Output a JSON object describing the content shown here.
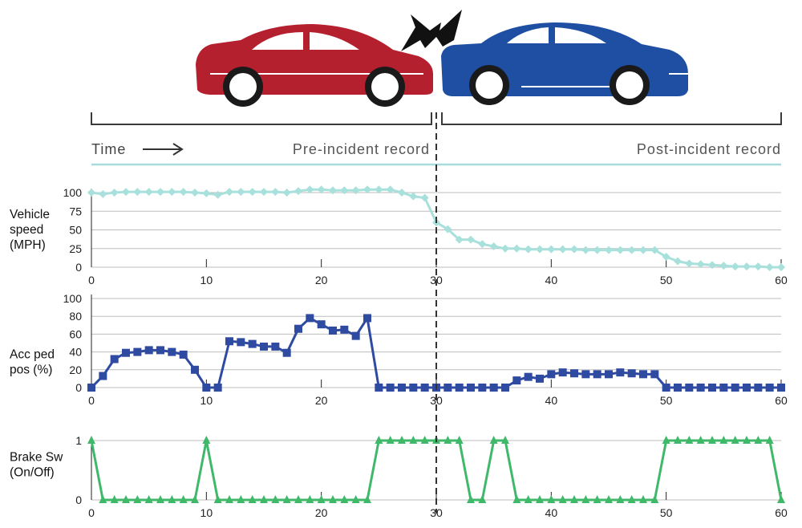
{
  "header": {
    "time_label": "Time",
    "pre_label": "Pre-incident record",
    "post_label": "Post-incident record"
  },
  "colors": {
    "red_car": "#b5202f",
    "blue_car": "#1e4fa3",
    "speed": "#a8e0dc",
    "acc": "#2e4aa1",
    "brake": "#3fb86a",
    "grid": "#bdbdbd",
    "timeline": "#a8dcdc",
    "bracket": "#3a3a3a"
  },
  "chart_data": [
    {
      "type": "line",
      "ylabel": "Vehicle speed (MPH)",
      "ylabel_lines": [
        "Vehicle",
        "speed",
        "(MPH)"
      ],
      "xlim": [
        0,
        60
      ],
      "ylim": [
        0,
        100
      ],
      "yticks": [
        0,
        25,
        50,
        75,
        100
      ],
      "xticks": [
        0,
        10,
        20,
        30,
        40,
        50,
        60
      ],
      "marker": "diamond",
      "grid": true,
      "x": [
        0,
        1,
        2,
        3,
        4,
        5,
        6,
        7,
        8,
        9,
        10,
        11,
        12,
        13,
        14,
        15,
        16,
        17,
        18,
        19,
        20,
        21,
        22,
        23,
        24,
        25,
        26,
        27,
        28,
        29,
        30,
        31,
        32,
        33,
        34,
        35,
        36,
        37,
        38,
        39,
        40,
        41,
        42,
        43,
        44,
        45,
        46,
        47,
        48,
        49,
        50,
        51,
        52,
        53,
        54,
        55,
        56,
        57,
        58,
        59,
        60
      ],
      "values": [
        100,
        98,
        100,
        101,
        101,
        101,
        101,
        101,
        101,
        100,
        99,
        97,
        101,
        101,
        101,
        101,
        101,
        100,
        102,
        104,
        104,
        103,
        103,
        103,
        104,
        104,
        104,
        100,
        95,
        93,
        60,
        51,
        37,
        37,
        31,
        28,
        25,
        25,
        24,
        24,
        24,
        24,
        24,
        23,
        23,
        23,
        23,
        23,
        23,
        23,
        14,
        8,
        5,
        4,
        3,
        2,
        1,
        1,
        1,
        0,
        0
      ]
    },
    {
      "type": "line",
      "ylabel": "Acc ped pos (%)",
      "ylabel_lines": [
        "Acc ped",
        "pos (%)"
      ],
      "xlim": [
        0,
        60
      ],
      "ylim": [
        0,
        100
      ],
      "yticks": [
        0,
        20,
        40,
        60,
        80,
        100
      ],
      "xticks": [
        0,
        10,
        20,
        30,
        40,
        50,
        60
      ],
      "marker": "square",
      "grid": true,
      "x": [
        0,
        1,
        2,
        3,
        4,
        5,
        6,
        7,
        8,
        9,
        10,
        11,
        12,
        13,
        14,
        15,
        16,
        17,
        18,
        19,
        20,
        21,
        22,
        23,
        24,
        25,
        26,
        27,
        28,
        29,
        30,
        31,
        32,
        33,
        34,
        35,
        36,
        37,
        38,
        39,
        40,
        41,
        42,
        43,
        44,
        45,
        46,
        47,
        48,
        49,
        50,
        51,
        52,
        53,
        54,
        55,
        56,
        57,
        58,
        59,
        60
      ],
      "values": [
        0,
        13,
        32,
        39,
        40,
        42,
        42,
        40,
        37,
        20,
        0,
        0,
        52,
        51,
        49,
        46,
        46,
        39,
        66,
        78,
        71,
        64,
        65,
        58,
        78,
        0,
        0,
        0,
        0,
        0,
        0,
        0,
        0,
        0,
        0,
        0,
        0,
        8,
        12,
        10,
        15,
        17,
        16,
        15,
        15,
        15,
        17,
        16,
        15,
        15,
        0,
        0,
        0,
        0,
        0,
        0,
        0,
        0,
        0,
        0,
        0
      ]
    },
    {
      "type": "line",
      "ylabel": "Brake Sw (On/Off)",
      "ylabel_lines": [
        "Brake Sw",
        "(On/Off)"
      ],
      "xlim": [
        0,
        60
      ],
      "ylim": [
        0,
        1
      ],
      "yticks": [
        0,
        1
      ],
      "xticks": [
        0,
        10,
        20,
        30,
        40,
        50,
        60
      ],
      "marker": "triangle",
      "grid": true,
      "x": [
        0,
        1,
        2,
        3,
        4,
        5,
        6,
        7,
        8,
        9,
        10,
        11,
        12,
        13,
        14,
        15,
        16,
        17,
        18,
        19,
        20,
        21,
        22,
        23,
        24,
        25,
        26,
        27,
        28,
        29,
        30,
        31,
        32,
        33,
        34,
        35,
        36,
        37,
        38,
        39,
        40,
        41,
        42,
        43,
        44,
        45,
        46,
        47,
        48,
        49,
        50,
        51,
        52,
        53,
        54,
        55,
        56,
        57,
        58,
        59,
        60
      ],
      "values": [
        1,
        0,
        0,
        0,
        0,
        0,
        0,
        0,
        0,
        0,
        1,
        0,
        0,
        0,
        0,
        0,
        0,
        0,
        0,
        0,
        0,
        0,
        0,
        0,
        0,
        1,
        1,
        1,
        1,
        1,
        1,
        1,
        1,
        0,
        0,
        1,
        1,
        0,
        0,
        0,
        0,
        0,
        0,
        0,
        0,
        0,
        0,
        0,
        0,
        0,
        1,
        1,
        1,
        1,
        1,
        1,
        1,
        1,
        1,
        1,
        0
      ]
    }
  ]
}
